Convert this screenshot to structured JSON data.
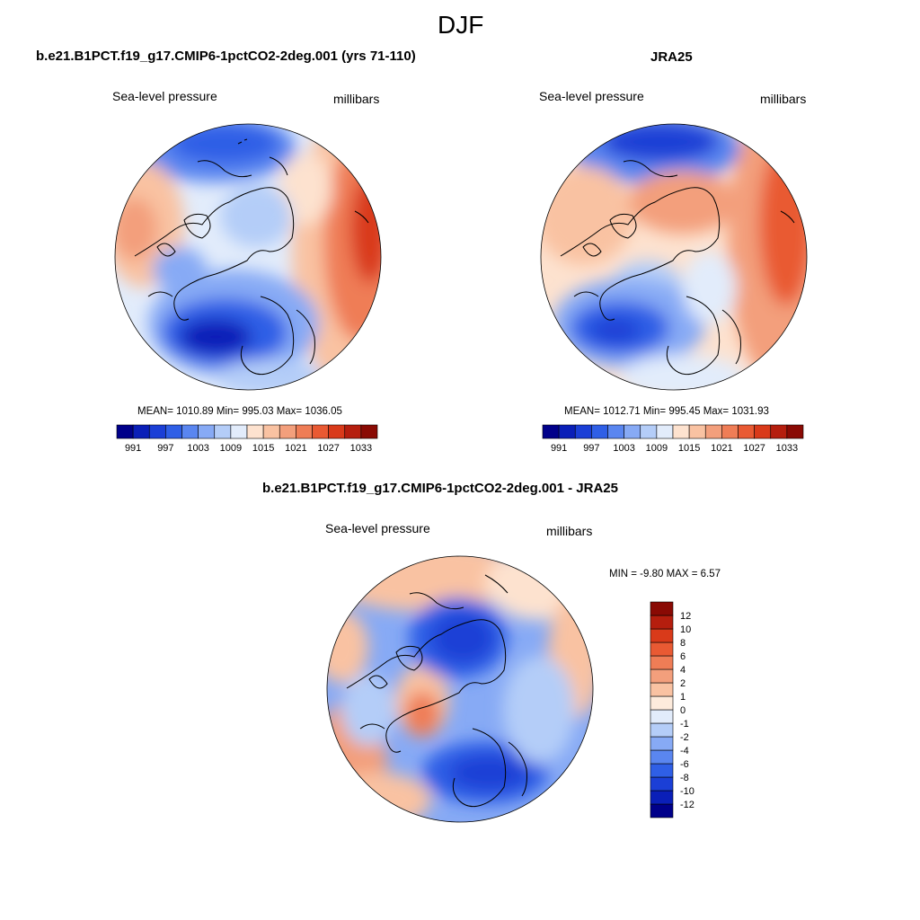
{
  "page": {
    "title": "DJF"
  },
  "panels": [
    {
      "id": "model",
      "header": "b.e21.B1PCT.f19_g17.CMIP6-1pctCO2-2deg.001 (yrs 71-110)",
      "variable": "Sea-level pressure",
      "units": "millibars",
      "stats_text": "MEAN= 1010.89  Min= 995.03  Max= 1036.05"
    },
    {
      "id": "obs",
      "header": "JRA25",
      "variable": "Sea-level pressure",
      "units": "millibars",
      "stats_text": "MEAN= 1012.71  Min= 995.45  Max= 1031.93"
    },
    {
      "id": "diff",
      "header": "b.e21.B1PCT.f19_g17.CMIP6-1pctCO2-2deg.001 - JRA25",
      "variable": "Sea-level pressure",
      "units": "millibars",
      "stats_text": "MIN =  -9.80 MAX =   6.57"
    }
  ],
  "abs_colorbar": {
    "colors": [
      "#00008a",
      "#0a1fb8",
      "#1b3fd6",
      "#2f5fe6",
      "#5a86f0",
      "#87aaf5",
      "#b4cdf8",
      "#e2ecfb",
      "#fde2cf",
      "#f9c2a2",
      "#f39f7c",
      "#ef7d56",
      "#e95a33",
      "#d93a1a",
      "#b51e0e",
      "#8a0a04"
    ],
    "labels": [
      "991",
      "997",
      "1003",
      "1009",
      "1015",
      "1021",
      "1027",
      "1033"
    ]
  },
  "diff_colorbar": {
    "colors": [
      "#00008a",
      "#0a1fb8",
      "#1b3fd6",
      "#2f5fe6",
      "#5a86f0",
      "#87aaf5",
      "#b4cdf8",
      "#e2ecfb",
      "#fdebdc",
      "#f9c2a2",
      "#f39f7c",
      "#ef7d56",
      "#e95a33",
      "#d93a1a",
      "#b51e0e",
      "#8a0a04"
    ],
    "labels": [
      "12",
      "10",
      "8",
      "6",
      "4",
      "2",
      "1",
      "0",
      "-1",
      "-2",
      "-4",
      "-6",
      "-8",
      "-10",
      "-12"
    ]
  }
}
